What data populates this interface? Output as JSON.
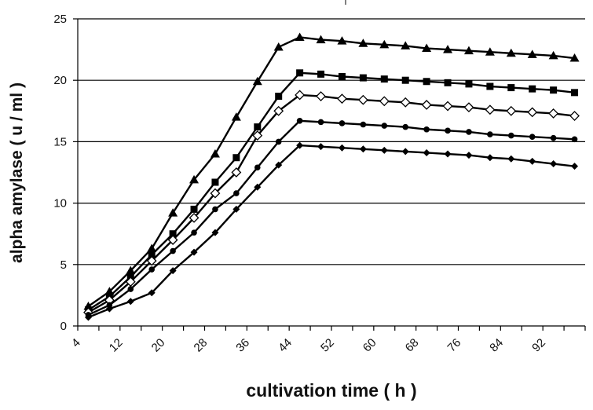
{
  "chart_data": {
    "type": "line",
    "title": "",
    "xlabel": "cultivation time ( h )",
    "ylabel": "alpha amylase ( u / ml )",
    "xlim": [
      4,
      100
    ],
    "ylim": [
      0,
      25
    ],
    "x_ticks": [
      4,
      12,
      20,
      28,
      36,
      44,
      52,
      60,
      68,
      76,
      84,
      92
    ],
    "y_ticks": [
      0,
      5,
      10,
      15,
      20,
      25
    ],
    "grid": "horizontal",
    "legend": "none",
    "x": [
      6,
      10,
      14,
      18,
      22,
      26,
      30,
      34,
      38,
      42,
      46,
      50,
      54,
      58,
      62,
      66,
      70,
      74,
      78,
      82,
      86,
      90,
      94,
      98
    ],
    "series": [
      {
        "name": "triangle-filled",
        "marker": "triangle",
        "color": "#000000",
        "values": [
          1.6,
          2.8,
          4.5,
          6.3,
          9.2,
          11.9,
          14.0,
          17.0,
          19.9,
          22.7,
          23.5,
          23.3,
          23.2,
          23.0,
          22.9,
          22.8,
          22.6,
          22.5,
          22.4,
          22.3,
          22.2,
          22.1,
          22.0,
          21.8
        ]
      },
      {
        "name": "square-filled",
        "marker": "square",
        "color": "#000000",
        "values": [
          1.3,
          2.4,
          4.0,
          5.8,
          7.5,
          9.5,
          11.7,
          13.7,
          16.2,
          18.7,
          20.6,
          20.5,
          20.3,
          20.2,
          20.1,
          20.0,
          19.9,
          19.8,
          19.7,
          19.5,
          19.4,
          19.3,
          19.2,
          19.0
        ]
      },
      {
        "name": "diamond-open",
        "marker": "diamond-open",
        "color": "#000000",
        "values": [
          1.1,
          2.1,
          3.6,
          5.3,
          7.0,
          8.8,
          10.8,
          12.5,
          15.5,
          17.5,
          18.8,
          18.7,
          18.5,
          18.4,
          18.3,
          18.2,
          18.0,
          17.9,
          17.8,
          17.6,
          17.5,
          17.4,
          17.3,
          17.1
        ]
      },
      {
        "name": "circle-filled",
        "marker": "circle",
        "color": "#000000",
        "values": [
          0.9,
          1.7,
          3.0,
          4.6,
          6.1,
          7.6,
          9.5,
          10.8,
          12.9,
          15.0,
          16.7,
          16.6,
          16.5,
          16.4,
          16.3,
          16.2,
          16.0,
          15.9,
          15.8,
          15.6,
          15.5,
          15.4,
          15.3,
          15.2
        ]
      },
      {
        "name": "diamond-filled",
        "marker": "diamond",
        "color": "#000000",
        "values": [
          0.7,
          1.4,
          2.0,
          2.7,
          4.5,
          6.0,
          7.6,
          9.5,
          11.3,
          13.1,
          14.7,
          14.6,
          14.5,
          14.4,
          14.3,
          14.2,
          14.1,
          14.0,
          13.9,
          13.7,
          13.6,
          13.4,
          13.2,
          13.0
        ]
      }
    ]
  }
}
